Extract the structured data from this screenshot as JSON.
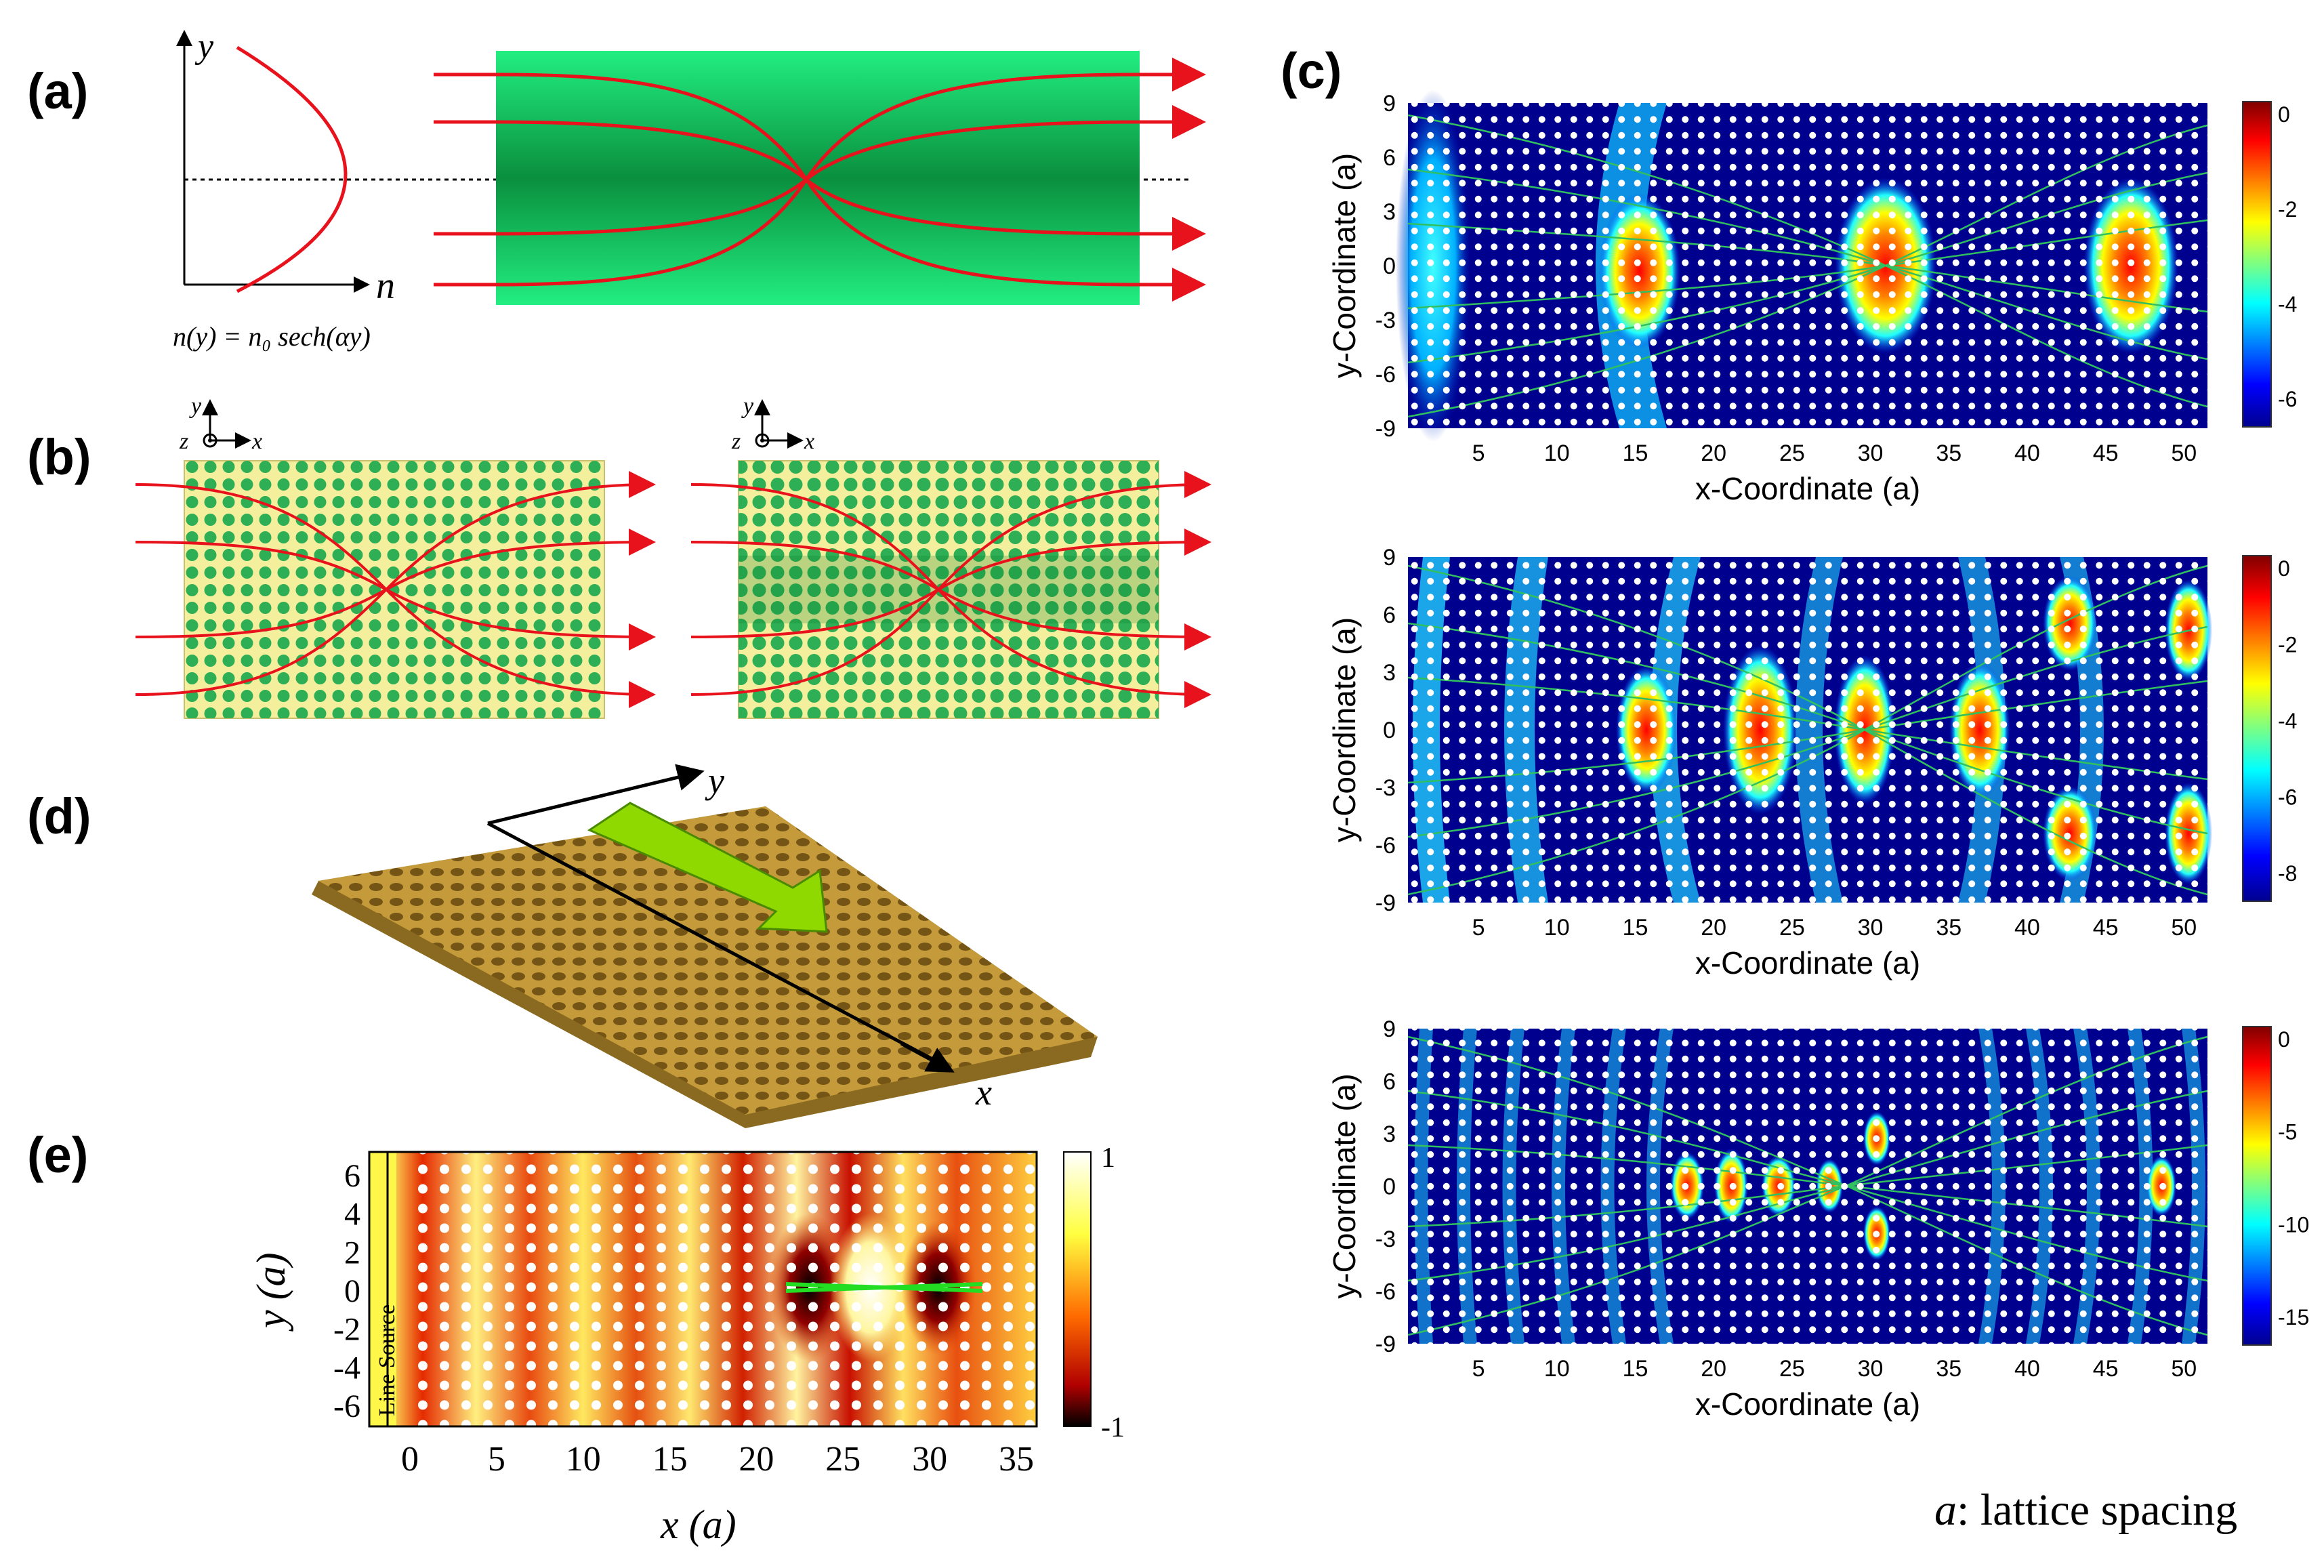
{
  "panels": {
    "a": {
      "label": "(a)",
      "y_axis": "y",
      "x_axis": "n",
      "formula": "n(y) = n₀ sech(αy)"
    },
    "b": {
      "label": "(b)",
      "axis_y": "y",
      "axis_z": "z",
      "axis_x": "x"
    },
    "c": {
      "label": "(c)",
      "plots": [
        {
          "ylabel": "y-Coordinate (a)",
          "xlabel": "x-Coordinate (a)",
          "xticks": [
            "5",
            "10",
            "15",
            "20",
            "25",
            "30",
            "35",
            "40",
            "45",
            "50"
          ],
          "yticks": [
            "9",
            "6",
            "3",
            "0",
            "-3",
            "-6",
            "-9"
          ],
          "cbar_ticks": [
            "0",
            "-2",
            "-4",
            "-6"
          ]
        },
        {
          "ylabel": "y-Coordinate (a)",
          "xlabel": "x-Coordinate (a)",
          "xticks": [
            "5",
            "10",
            "15",
            "20",
            "25",
            "30",
            "35",
            "40",
            "45",
            "50"
          ],
          "yticks": [
            "9",
            "6",
            "3",
            "0",
            "-3",
            "-6",
            "-9"
          ],
          "cbar_ticks": [
            "0",
            "-2",
            "-4",
            "-6",
            "-8"
          ]
        },
        {
          "ylabel": "y-Coordinate (a)",
          "xlabel": "x-Coordinate (a)",
          "xticks": [
            "5",
            "10",
            "15",
            "20",
            "25",
            "30",
            "35",
            "40",
            "45",
            "50"
          ],
          "yticks": [
            "9",
            "6",
            "3",
            "0",
            "-3",
            "-6",
            "-9"
          ],
          "cbar_ticks": [
            "0",
            "-5",
            "-10",
            "-15"
          ]
        }
      ]
    },
    "d": {
      "label": "(d)",
      "axis_y": "y",
      "axis_x": "x"
    },
    "e": {
      "label": "(e)",
      "source_label": "Line Source",
      "ylabel": "y (a)",
      "xlabel": "x (a)",
      "xticks": [
        "0",
        "5",
        "10",
        "15",
        "20",
        "25",
        "30",
        "35"
      ],
      "yticks": [
        "6",
        "4",
        "2",
        "0",
        "-2",
        "-4",
        "-6"
      ],
      "cbar_ticks": [
        "1",
        "-1"
      ]
    }
  },
  "footnote": {
    "symbol": "a",
    "text": ": lattice spacing"
  },
  "colors": {
    "ray": "#e8121c",
    "lens_green": "#1ee67a",
    "lens_dark": "#0a8f3e",
    "slab_yellow": "#f4ef9c",
    "jet_bg": "#00008f",
    "gold": "#c49a3a"
  }
}
